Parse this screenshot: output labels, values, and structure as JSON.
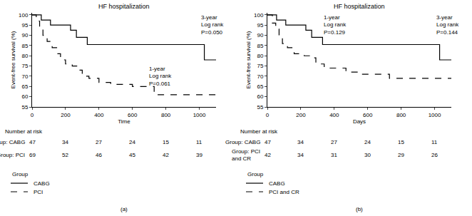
{
  "chart_data": [
    {
      "type": "line",
      "title": "HF hospitalization",
      "panel_label": "(a)",
      "x_label": "Time",
      "y_label": "Event-free survival (%)",
      "xlim": [
        0,
        1100
      ],
      "xticks": [
        0,
        200,
        400,
        600,
        800,
        1000
      ],
      "ylim": [
        55,
        101
      ],
      "yticks": [
        55,
        60,
        65,
        70,
        75,
        80,
        85,
        90,
        95,
        100
      ],
      "grid": false,
      "legend_title": "Group",
      "series": [
        {
          "name": "CABG",
          "color": "#000000",
          "line_style": "solid",
          "x": [
            0,
            55,
            110,
            230,
            265,
            330,
            1030,
            1100
          ],
          "values": [
            100,
            97.5,
            95,
            92.5,
            89,
            85.5,
            78,
            78
          ]
        },
        {
          "name": "PCI",
          "color": "#000000",
          "line_style": "dash",
          "x": [
            0,
            25,
            45,
            65,
            90,
            120,
            150,
            170,
            200,
            240,
            270,
            300,
            340,
            400,
            470,
            600,
            730,
            1100
          ],
          "values": [
            100,
            97,
            93,
            90,
            87,
            84,
            81,
            78,
            76,
            75,
            73,
            70,
            69,
            67,
            66,
            65,
            61,
            61
          ]
        }
      ],
      "annotations": [
        [
          "1-year",
          "Log rank",
          "P=0.061"
        ],
        [
          "3-year",
          "Log rank",
          "P=0.050"
        ]
      ],
      "number_at_risk": {
        "title": "Number at risk",
        "times": [
          0,
          200,
          400,
          600,
          800,
          1000
        ],
        "rows": [
          {
            "label": [
              "Group: CABG"
            ],
            "values": [
              47,
              34,
              27,
              24,
              15,
              11
            ]
          },
          {
            "label": [
              "Group: PCI"
            ],
            "values": [
              69,
              52,
              46,
              45,
              42,
              39
            ]
          }
        ]
      }
    },
    {
      "type": "line",
      "title": "HF hospitalization",
      "panel_label": "(b)",
      "x_label": "Days",
      "y_label": "Event-free survival (%)",
      "xlim": [
        0,
        1100
      ],
      "xticks": [
        0,
        200,
        400,
        600,
        800,
        1000
      ],
      "ylim": [
        55,
        101
      ],
      "yticks": [
        55,
        60,
        65,
        70,
        75,
        80,
        85,
        90,
        95,
        100
      ],
      "grid": false,
      "legend_title": "Group",
      "series": [
        {
          "name": "CABG",
          "color": "#000000",
          "line_style": "solid",
          "x": [
            0,
            55,
            110,
            230,
            265,
            330,
            1030,
            1100
          ],
          "values": [
            100,
            97.5,
            95,
            92.5,
            89,
            85.5,
            78,
            78
          ]
        },
        {
          "name": "PCI and CR",
          "color": "#000000",
          "line_style": "dash",
          "x": [
            0,
            30,
            50,
            70,
            90,
            120,
            160,
            220,
            260,
            290,
            340,
            470,
            560,
            730,
            1100
          ],
          "values": [
            100,
            96,
            93,
            89,
            86,
            84,
            81,
            80,
            79,
            76,
            74,
            72,
            71,
            69,
            69
          ]
        }
      ],
      "annotations": [
        [
          "1-year",
          "Log rank",
          "P=0.129"
        ],
        [
          "3-year",
          "Log rank",
          "P=0.144"
        ]
      ],
      "number_at_risk": {
        "title": "Number at risk",
        "times": [
          0,
          200,
          400,
          600,
          800,
          1000
        ],
        "rows": [
          {
            "label": [
              "Group: CABG"
            ],
            "values": [
              47,
              34,
              27,
              24,
              15,
              11
            ]
          },
          {
            "label": [
              "Group: PCI",
              "and CR"
            ],
            "values": [
              42,
              34,
              31,
              30,
              29,
              26
            ]
          }
        ]
      }
    }
  ]
}
